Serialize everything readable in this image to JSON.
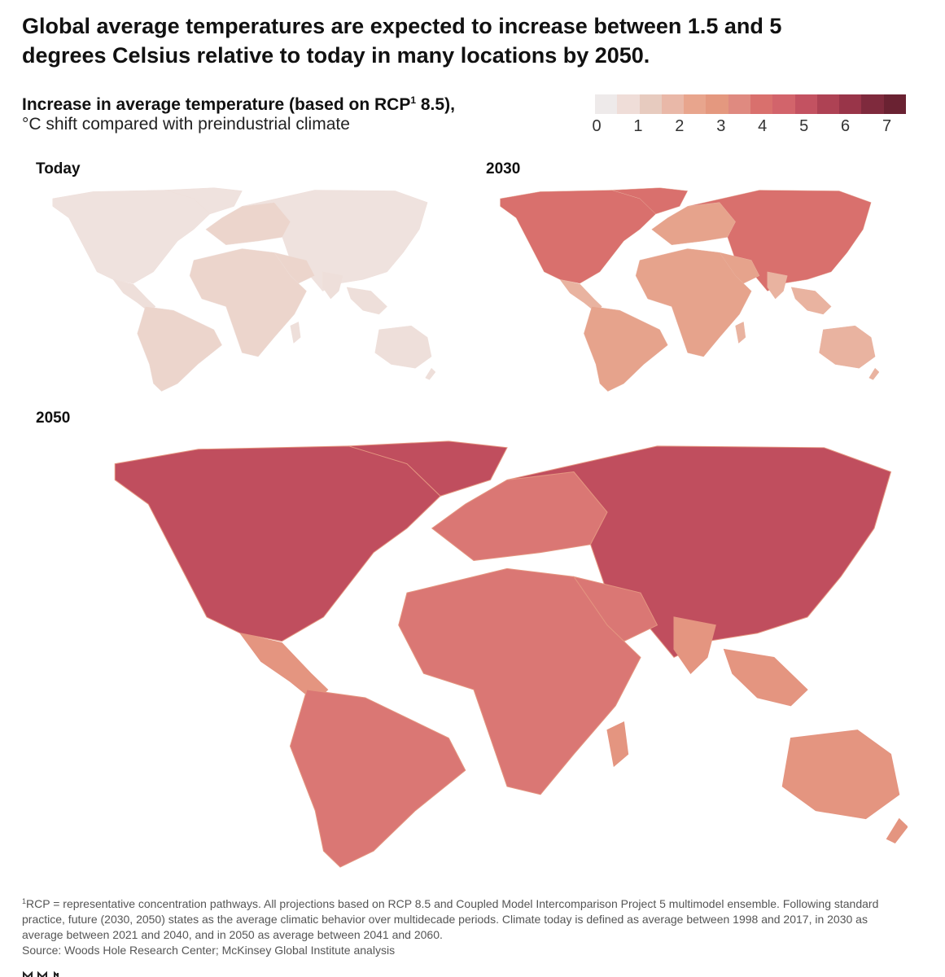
{
  "title": "Global average temperatures are expected to increase between 1.5 and 5 degrees Celsius relative to today in many locations by 2050.",
  "subtitle": {
    "bold_prefix": "Increase in average temperature (based on RCP",
    "footnote_mark": "1",
    "bold_suffix": " 8.5),",
    "line2": "°C shift compared with preindustrial climate"
  },
  "legend": {
    "colors": [
      "#eeeaea",
      "#efddd8",
      "#e7cbbf",
      "#e9b8a8",
      "#e8a58d",
      "#e4987f",
      "#df8a80",
      "#d9706d",
      "#d2646b",
      "#c35261",
      "#ae4254",
      "#993549",
      "#7f2a3d",
      "#6a2232"
    ],
    "ticks": [
      "0",
      "1",
      "2",
      "3",
      "4",
      "5",
      "6",
      "7"
    ],
    "min": 0,
    "max": 7.5
  },
  "panels": {
    "today": {
      "label": "Today"
    },
    "y2030": {
      "label": "2030"
    },
    "y2050": {
      "label": "2050"
    }
  },
  "map_palettes": {
    "today": {
      "base": "#eedfda",
      "mid": "#ecd5cc",
      "north": "#efe2de"
    },
    "y2030": {
      "base": "#e9b3a0",
      "mid": "#e6a38c",
      "north": "#d9706d"
    },
    "y2050": {
      "base": "#e49580",
      "mid": "#da7774",
      "north": "#c04e5e"
    }
  },
  "footnote": {
    "mark": "1",
    "text": "RCP = representative concentration pathways. All projections based on RCP 8.5 and Coupled Model Intercomparison Project 5 multimodel ensemble. Following standard practice, future (2030, 2050) states as the average climatic behavior over multidecade periods. Climate today is defined as average between 1998 and 2017, in 2030 as average between 2021 and 2040, and in 2050 as average between 2041 and 2060.",
    "source": "Source: Woods Hole Research Center; McKinsey Global Institute analysis"
  }
}
